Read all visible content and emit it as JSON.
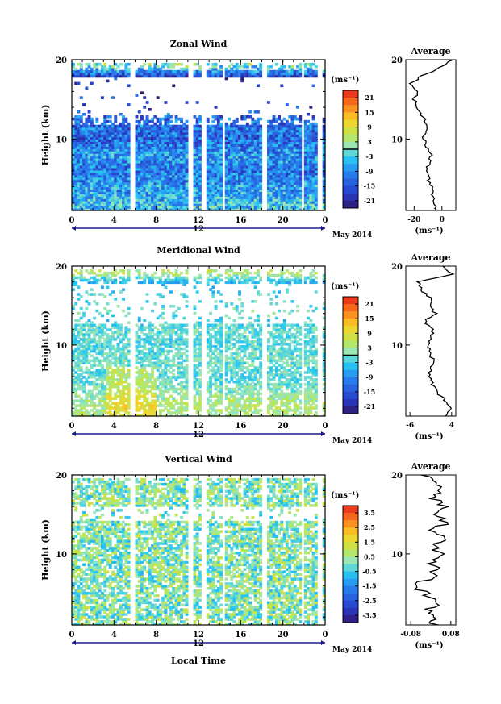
{
  "chart_data": [
    {
      "type": "heatmap",
      "title": "Zonal Wind",
      "ylabel": "Height (km)",
      "xticks": [
        "0",
        "4",
        "8",
        "12",
        "16",
        "20",
        "0"
      ],
      "yticks": [
        "10",
        "20"
      ],
      "xlim": [
        0,
        24
      ],
      "ylim": [
        1,
        20
      ],
      "date_day": "12",
      "date_label": "May 2014",
      "colorbar": {
        "unit": "(ms⁻¹)",
        "ticks": [
          "21",
          "15",
          "9",
          "3",
          "-3",
          "-9",
          "-15",
          "-21"
        ],
        "tick_values": [
          21,
          15,
          9,
          3,
          -3,
          -9,
          -15,
          -21
        ],
        "range": [
          -24,
          24
        ],
        "contour_level": 0
      },
      "profile": {
        "title": "Average",
        "xlabel": "(ms⁻¹)",
        "xticks": [
          "-20",
          "0"
        ],
        "xtick_values": [
          -20,
          0
        ],
        "xlim": [
          -26,
          10
        ],
        "yticks": [
          "10",
          "20"
        ],
        "heights": [
          1,
          2,
          3,
          4,
          5,
          6,
          7,
          8,
          9,
          10,
          11,
          12,
          13,
          14,
          15,
          16,
          17,
          18,
          19,
          20
        ],
        "values": [
          -4,
          -5,
          -7,
          -8,
          -10,
          -12,
          -9,
          -8,
          -11,
          -13,
          -12,
          -12,
          -14,
          -17,
          -20,
          -18,
          -22,
          -14,
          -2,
          8
        ]
      }
    },
    {
      "type": "heatmap",
      "title": "Meridional Wind",
      "ylabel": "Height (km)",
      "xticks": [
        "0",
        "4",
        "8",
        "12",
        "16",
        "20",
        "0"
      ],
      "yticks": [
        "10",
        "20"
      ],
      "xlim": [
        0,
        24
      ],
      "ylim": [
        1,
        20
      ],
      "date_day": "12",
      "date_label": "May 2014",
      "colorbar": {
        "unit": "(ms⁻¹)",
        "ticks": [
          "21",
          "15",
          "9",
          "3",
          "-3",
          "-9",
          "-15",
          "-21"
        ],
        "tick_values": [
          21,
          15,
          9,
          3,
          -3,
          -9,
          -15,
          -21
        ],
        "range": [
          -24,
          24
        ],
        "contour_level": 0
      },
      "profile": {
        "title": "Average",
        "xlabel": "(ms⁻¹)",
        "xticks": [
          "-6",
          "4"
        ],
        "xtick_values": [
          -6,
          4
        ],
        "xlim": [
          -7,
          5
        ],
        "yticks": [
          "10",
          "20"
        ],
        "heights": [
          1,
          2,
          3,
          4,
          5,
          6,
          7,
          8,
          9,
          10,
          11,
          12,
          13,
          14,
          15,
          16,
          17,
          18,
          19,
          20
        ],
        "values": [
          2.5,
          3.5,
          2.5,
          0.5,
          -0.5,
          -1.5,
          -1,
          -0.5,
          -1,
          -1.5,
          -1,
          -0.5,
          -2.5,
          0,
          -1.5,
          -1,
          -3.5,
          -4,
          4,
          2
        ]
      }
    },
    {
      "type": "heatmap",
      "title": "Vertical Wind",
      "ylabel": "Height (km)",
      "xlabel": "Local Time",
      "xticks": [
        "0",
        "4",
        "8",
        "12",
        "16",
        "20",
        "0"
      ],
      "yticks": [
        "10",
        "20"
      ],
      "xlim": [
        0,
        24
      ],
      "ylim": [
        1,
        20
      ],
      "date_day": "12",
      "date_label": "May 2014",
      "colorbar": {
        "unit": "(ms⁻¹)",
        "ticks": [
          "3.5",
          "2.5",
          "1.5",
          "0.5",
          "-0.5",
          "-1.5",
          "-2.5",
          "-3.5"
        ],
        "tick_values": [
          3.5,
          2.5,
          1.5,
          0.5,
          -0.5,
          -1.5,
          -2.5,
          -3.5
        ],
        "range": [
          -4,
          4
        ]
      },
      "profile": {
        "title": "Average",
        "xlabel": "(ms⁻¹)",
        "xticks": [
          "-0.08",
          "0.08"
        ],
        "xtick_values": [
          -0.08,
          0.08
        ],
        "xlim": [
          -0.1,
          0.1
        ],
        "yticks": [
          "10",
          "20"
        ],
        "heights": [
          1,
          2,
          3,
          4,
          5,
          6,
          7,
          8,
          9,
          10,
          11,
          12,
          13,
          14,
          15,
          16,
          17,
          18,
          19,
          20
        ],
        "values": [
          0.01,
          0.02,
          0.0,
          0.03,
          -0.02,
          -0.08,
          0.01,
          0.02,
          0.0,
          0.03,
          0.02,
          0.05,
          0.01,
          0.07,
          0.03,
          0.05,
          0.02,
          0.04,
          0.0,
          -0.03
        ]
      }
    }
  ]
}
